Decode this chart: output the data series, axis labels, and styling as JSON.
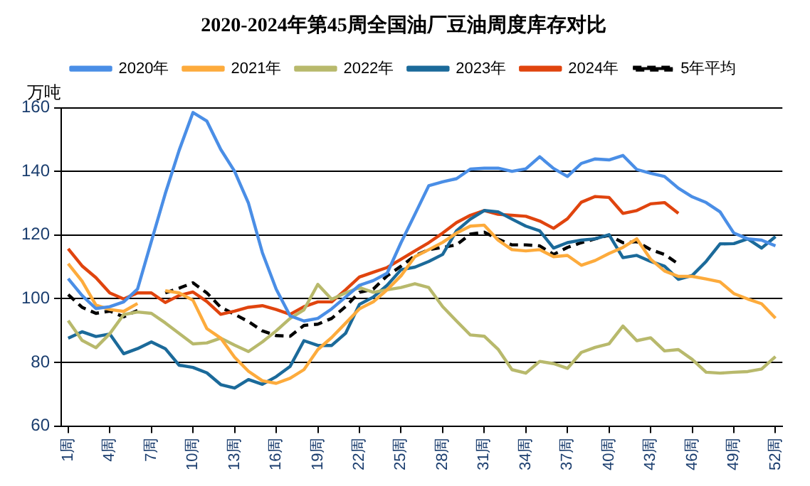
{
  "chart_data": {
    "type": "line",
    "title": "2020-2024年第45周全国油厂豆油周度库存对比",
    "ylabel": "万吨",
    "categories": [
      "1周",
      null,
      null,
      "4周",
      null,
      null,
      "7周",
      null,
      null,
      "10周",
      null,
      null,
      "13周",
      null,
      null,
      "16周",
      null,
      null,
      "19周",
      null,
      null,
      "22周",
      null,
      null,
      "25周",
      null,
      null,
      "28周",
      null,
      null,
      "31周",
      null,
      null,
      "34周",
      null,
      null,
      "37周",
      null,
      null,
      "40周",
      null,
      null,
      "43周",
      null,
      null,
      "46周",
      null,
      null,
      "49周",
      null,
      null,
      "52周"
    ],
    "series": [
      {
        "name": "2020年",
        "color": "#4a8ee6",
        "values": [
          106.3,
          101,
          96.9,
          97.5,
          99,
          103,
          118,
          133,
          146.6,
          158.5,
          155.8,
          146.9,
          140,
          130,
          114.5,
          103,
          94.6,
          93,
          93.8,
          96.8,
          100.5,
          104.2,
          105.7,
          108,
          117.6,
          126.5,
          135.5,
          136.7,
          137.7,
          140.7,
          141,
          141,
          140,
          140.8,
          144.6,
          140.9,
          138.4,
          142.5,
          143.9,
          143.6,
          145,
          140.6,
          139.4,
          138.4,
          134.7,
          132,
          130.2,
          127.3,
          120.6,
          118.8,
          118.4,
          116.6
        ]
      },
      {
        "name": "2021年",
        "color": "#fdab3c",
        "values": [
          111,
          105.5,
          98,
          96.6,
          96,
          98.5,
          null,
          102.5,
          101.8,
          99.5,
          90.6,
          87.6,
          81.6,
          77.2,
          74.2,
          73.4,
          75,
          77.7,
          84,
          87.8,
          92.3,
          96.8,
          99,
          102.8,
          107.2,
          113.2,
          115.4,
          117.7,
          120.6,
          122.8,
          123.1,
          118.4,
          115.4,
          115,
          115.4,
          113.2,
          113.6,
          110.5,
          112,
          114.2,
          116.1,
          118.8,
          112.4,
          108.7,
          107,
          107,
          106.2,
          105.3,
          101.6,
          99.9,
          98.4,
          93.9
        ]
      },
      {
        "name": "2022年",
        "color": "#b8b96c",
        "values": [
          93.1,
          86.9,
          84.6,
          89,
          95,
          95.8,
          95.4,
          92.4,
          89.1,
          85.8,
          86.1,
          87.6,
          85.4,
          83.4,
          86.4,
          89.9,
          93.8,
          96.5,
          104.5,
          99.8,
          101.8,
          103.5,
          102,
          102.8,
          103.5,
          104.7,
          103.5,
          97.5,
          93,
          88.6,
          88.2,
          84.1,
          77.7,
          76.6,
          80.3,
          79.6,
          78.1,
          83.1,
          84.7,
          85.8,
          91.4,
          86.8,
          87.7,
          83.6,
          84,
          80.9,
          76.9,
          76.6,
          76.9,
          77.1,
          77.9,
          81.8
        ]
      },
      {
        "name": "2023年",
        "color": "#1b6a9a",
        "values": [
          87.6,
          89.6,
          88.1,
          88.9,
          82.7,
          84.3,
          86.4,
          84.3,
          79.1,
          78.4,
          76.7,
          73,
          71.9,
          74.6,
          73.1,
          75.5,
          78.7,
          86.8,
          85.3,
          85.3,
          89.1,
          98.2,
          100.5,
          104.2,
          109.1,
          109.9,
          111.7,
          113.9,
          121.3,
          125,
          127.7,
          127.3,
          125,
          122.8,
          121.3,
          115.9,
          117.6,
          118.4,
          118.8,
          120.1,
          112.9,
          113.6,
          111.7,
          110.2,
          106.1,
          107.3,
          111.7,
          117.2,
          117.3,
          118.8,
          115.9,
          119.5
        ]
      },
      {
        "name": "2024年",
        "color": "#e0440e",
        "values": [
          115.7,
          110.3,
          106.6,
          101.8,
          99.9,
          101.8,
          101.8,
          98.8,
          101,
          102.1,
          99.1,
          95.1,
          96.1,
          97.3,
          97.8,
          96.6,
          95.1,
          97.5,
          99,
          99,
          102.8,
          106.8,
          108.3,
          109.8,
          112.4,
          115,
          117.6,
          120.6,
          123.9,
          126.2,
          127.7,
          126.5,
          126.2,
          125.9,
          124.4,
          122.1,
          125.1,
          130.3,
          132.1,
          131.8,
          126.8,
          127.7,
          129.8,
          130.2,
          126.8,
          null,
          null,
          null,
          null,
          null,
          null,
          null
        ]
      },
      {
        "name": "5年平均",
        "color": "#000000",
        "line_style": "dashed",
        "values": [
          101.3,
          97.3,
          95.4,
          96.1,
          94.3,
          96.3,
          null,
          101.8,
          103.3,
          105,
          101.8,
          97.3,
          95.1,
          92.8,
          89.9,
          88.4,
          88.2,
          91.6,
          92,
          93.8,
          97.5,
          102,
          103,
          107.2,
          110.2,
          113.5,
          115.4,
          116.1,
          116.9,
          120.3,
          120.9,
          118.7,
          116.9,
          116.9,
          116.6,
          113.9,
          116.1,
          117.6,
          118.8,
          119.9,
          117.6,
          117.9,
          115.4,
          113.9,
          110.9,
          null,
          null,
          null,
          null,
          null,
          null,
          null
        ]
      }
    ],
    "ylim": [
      60,
      160
    ],
    "yticks": [
      60,
      80,
      100,
      120,
      140,
      160
    ],
    "grid": "y",
    "legend": "top",
    "marker": "none"
  }
}
